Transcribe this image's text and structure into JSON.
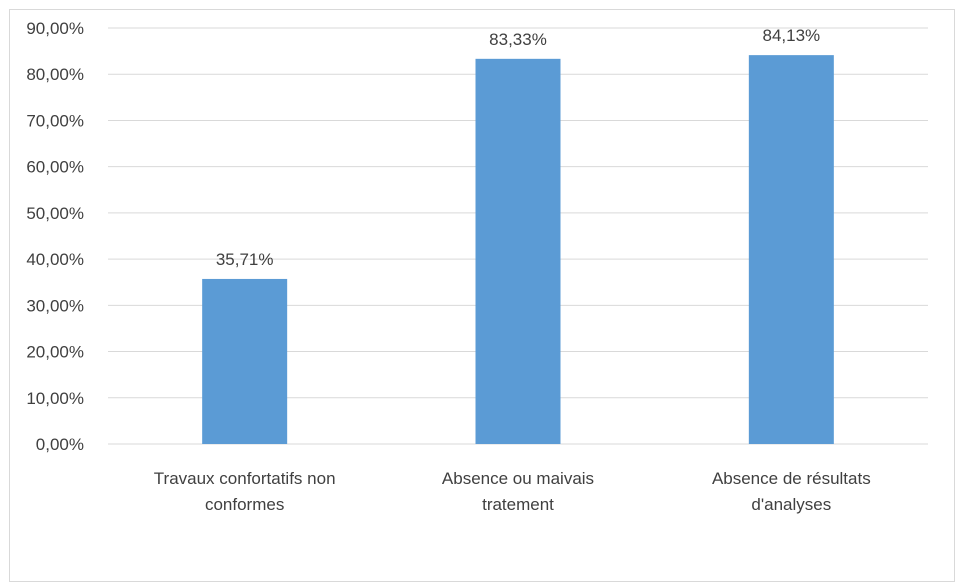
{
  "chart_data": {
    "type": "bar",
    "categories": [
      [
        "Travaux confortatifs non",
        "conformes"
      ],
      [
        "Absence ou maivais",
        "tratement"
      ],
      [
        "Absence de résultats",
        "d'analyses"
      ]
    ],
    "values": [
      35.71,
      83.33,
      84.13
    ],
    "data_labels": [
      "35,71%",
      "83,33%",
      "84,13%"
    ],
    "y_ticks": [
      "0,00%",
      "10,00%",
      "20,00%",
      "30,00%",
      "40,00%",
      "50,00%",
      "60,00%",
      "70,00%",
      "80,00%",
      "90,00%"
    ],
    "ylim": [
      0,
      90
    ],
    "grid": true,
    "bar_color": "#5b9bd5",
    "title": "",
    "xlabel": "",
    "ylabel": ""
  }
}
